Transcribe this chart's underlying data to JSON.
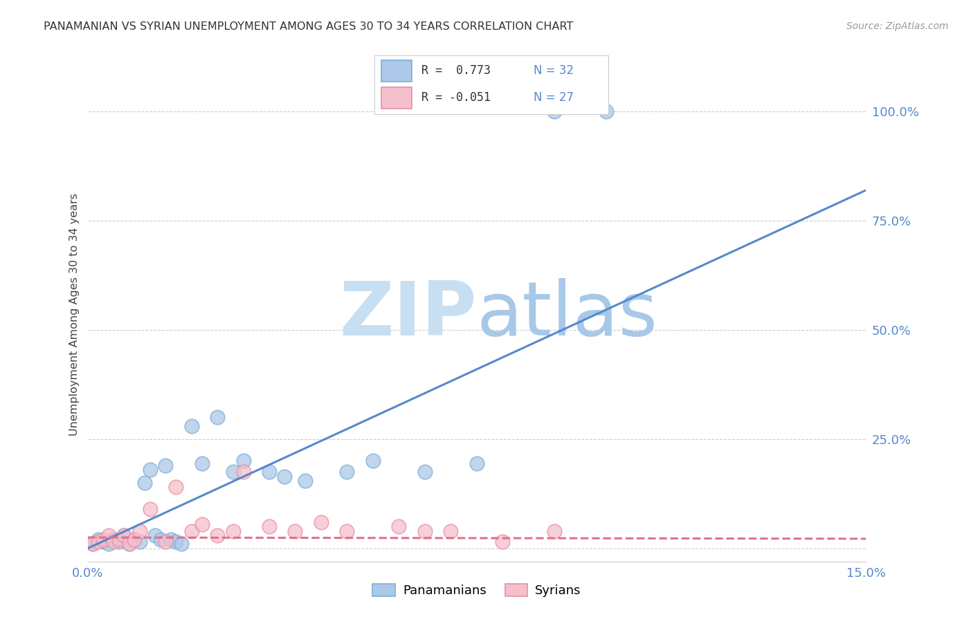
{
  "title": "PANAMANIAN VS SYRIAN UNEMPLOYMENT AMONG AGES 30 TO 34 YEARS CORRELATION CHART",
  "source": "Source: ZipAtlas.com",
  "ylabel": "Unemployment Among Ages 30 to 34 years",
  "ytick_labels": [
    "",
    "25.0%",
    "50.0%",
    "75.0%",
    "100.0%"
  ],
  "ytick_values": [
    0.0,
    0.25,
    0.5,
    0.75,
    1.0
  ],
  "xmin": 0.0,
  "xmax": 0.15,
  "ymin": -0.03,
  "ymax": 1.1,
  "legend_r_pan": " 0.773",
  "legend_n_pan": "32",
  "legend_r_syr": "-0.051",
  "legend_n_syr": "27",
  "pan_color": "#adc8e8",
  "syr_color": "#f5bfcc",
  "pan_edge_color": "#7bafd4",
  "syr_edge_color": "#e8909f",
  "pan_line_color": "#5588cc",
  "syr_line_color": "#e07090",
  "grid_color": "#cccccc",
  "background_color": "#ffffff",
  "pan_x": [
    0.001,
    0.002,
    0.003,
    0.004,
    0.005,
    0.006,
    0.007,
    0.008,
    0.009,
    0.01,
    0.011,
    0.012,
    0.013,
    0.014,
    0.015,
    0.016,
    0.017,
    0.018,
    0.02,
    0.022,
    0.025,
    0.028,
    0.03,
    0.035,
    0.038,
    0.042,
    0.05,
    0.055,
    0.065,
    0.075,
    0.09,
    0.1
  ],
  "pan_y": [
    0.01,
    0.02,
    0.015,
    0.01,
    0.02,
    0.015,
    0.03,
    0.01,
    0.02,
    0.015,
    0.15,
    0.18,
    0.03,
    0.02,
    0.19,
    0.02,
    0.015,
    0.01,
    0.28,
    0.195,
    0.3,
    0.175,
    0.2,
    0.175,
    0.165,
    0.155,
    0.175,
    0.2,
    0.175,
    0.195,
    1.0,
    1.0
  ],
  "syr_x": [
    0.001,
    0.002,
    0.003,
    0.004,
    0.005,
    0.006,
    0.007,
    0.008,
    0.009,
    0.01,
    0.012,
    0.015,
    0.017,
    0.02,
    0.022,
    0.025,
    0.028,
    0.03,
    0.035,
    0.04,
    0.045,
    0.05,
    0.06,
    0.065,
    0.07,
    0.08,
    0.09
  ],
  "syr_y": [
    0.01,
    0.015,
    0.02,
    0.03,
    0.015,
    0.02,
    0.03,
    0.01,
    0.02,
    0.04,
    0.09,
    0.015,
    0.14,
    0.04,
    0.055,
    0.03,
    0.04,
    0.175,
    0.05,
    0.04,
    0.06,
    0.04,
    0.05,
    0.04,
    0.04,
    0.015,
    0.04
  ],
  "pan_trendline_x": [
    0.0,
    0.15
  ],
  "pan_trendline_y": [
    0.0,
    0.82
  ],
  "syr_trendline_x": [
    0.0,
    0.15
  ],
  "syr_trendline_y": [
    0.025,
    0.022
  ]
}
